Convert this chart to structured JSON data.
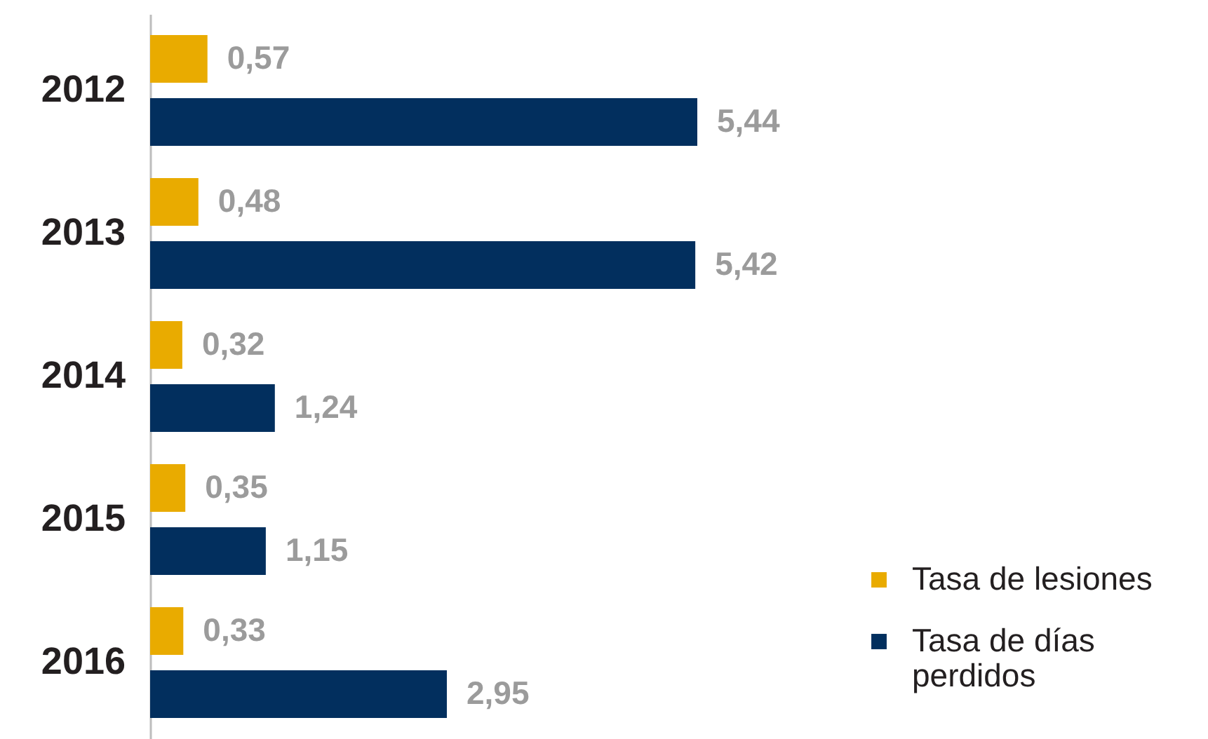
{
  "chart_data": {
    "type": "bar",
    "orientation": "horizontal",
    "categories": [
      "2012",
      "2013",
      "2014",
      "2015",
      "2016"
    ],
    "series": [
      {
        "name": "Tasa de lesiones",
        "color": "#e9ab00",
        "values": [
          0.57,
          0.48,
          0.32,
          0.35,
          0.33
        ],
        "value_labels": [
          "0,57",
          "0,48",
          "0,32",
          "0,35",
          "0,33"
        ]
      },
      {
        "name": "Tasa de días perdidos",
        "color": "#022f5e",
        "values": [
          5.44,
          5.42,
          1.24,
          1.15,
          2.95
        ],
        "value_labels": [
          "5,44",
          "5,42",
          "1,24",
          "1,15",
          "2,95"
        ]
      }
    ],
    "legend": "bottom right",
    "grid": false,
    "tick_labels": "y"
  }
}
